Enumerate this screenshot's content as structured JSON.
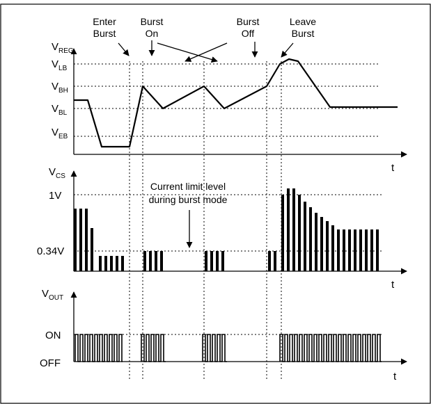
{
  "top_labels": {
    "enter_burst": [
      "Enter",
      "Burst"
    ],
    "burst_on": [
      "Burst",
      "On"
    ],
    "burst_off": [
      "Burst",
      "Off"
    ],
    "leave_burst": [
      "Leave",
      "Burst"
    ]
  },
  "panel_reg": {
    "axis_main": "V",
    "axis_sub": "REG",
    "levels": [
      {
        "main": "V",
        "sub": "LB"
      },
      {
        "main": "V",
        "sub": "BH"
      },
      {
        "main": "V",
        "sub": "BL"
      },
      {
        "main": "V",
        "sub": "EB"
      }
    ],
    "time_label": "t"
  },
  "panel_cs": {
    "axis_main": "V",
    "axis_sub": "CS",
    "level_1v": "1V",
    "level_034": "0.34V",
    "annotation": [
      "Current limit level",
      "during burst mode"
    ],
    "time_label": "t"
  },
  "panel_out": {
    "axis_main": "V",
    "axis_sub": "OUT",
    "on_label": "ON",
    "off_label": "OFF",
    "time_label": "t"
  },
  "colors": {
    "ink": "#000000",
    "background": "#ffffff"
  }
}
